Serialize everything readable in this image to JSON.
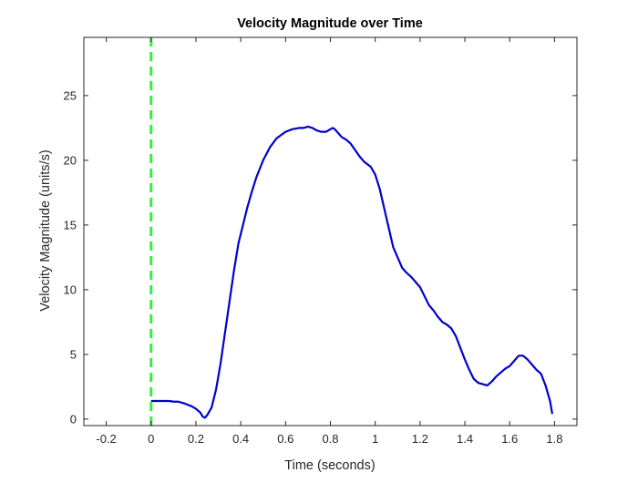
{
  "chart_data": {
    "type": "line",
    "title": "Velocity Magnitude over Time",
    "xlabel": "Time (seconds)",
    "ylabel": "Velocity Magnitude (units/s)",
    "xlim": [
      -0.3,
      1.9
    ],
    "ylim": [
      -0.5,
      29.5
    ],
    "xticks": [
      -0.2,
      0,
      0.2,
      0.4,
      0.6,
      0.8,
      1,
      1.2,
      1.4,
      1.6,
      1.8
    ],
    "xtick_labels": [
      "-0.2",
      "0",
      "0.2",
      "0.4",
      "0.6",
      "0.8",
      "1",
      "1.2",
      "1.4",
      "1.6",
      "1.8"
    ],
    "yticks": [
      0,
      5,
      10,
      15,
      20,
      25
    ],
    "ytick_labels": [
      "0",
      "5",
      "10",
      "15",
      "20",
      "25"
    ],
    "grid": false,
    "series": [
      {
        "color": "#0000cd",
        "style": "solid",
        "x": [
          0,
          0.02,
          0.05,
          0.08,
          0.1,
          0.12,
          0.15,
          0.18,
          0.2,
          0.22,
          0.23,
          0.24,
          0.25,
          0.27,
          0.29,
          0.31,
          0.33,
          0.35,
          0.37,
          0.39,
          0.41,
          0.43,
          0.45,
          0.47,
          0.5,
          0.53,
          0.56,
          0.6,
          0.63,
          0.66,
          0.68,
          0.7,
          0.72,
          0.74,
          0.76,
          0.78,
          0.8,
          0.81,
          0.82,
          0.83,
          0.85,
          0.87,
          0.89,
          0.91,
          0.93,
          0.95,
          0.98,
          1.0,
          1.02,
          1.04,
          1.06,
          1.08,
          1.1,
          1.12,
          1.14,
          1.16,
          1.18,
          1.2,
          1.22,
          1.24,
          1.26,
          1.28,
          1.3,
          1.32,
          1.34,
          1.36,
          1.38,
          1.4,
          1.42,
          1.44,
          1.46,
          1.48,
          1.5,
          1.52,
          1.54,
          1.56,
          1.58,
          1.6,
          1.62,
          1.64,
          1.66,
          1.68,
          1.7,
          1.72,
          1.74,
          1.76,
          1.78,
          1.79
        ],
        "y": [
          1.4,
          1.4,
          1.4,
          1.4,
          1.35,
          1.35,
          1.2,
          1.0,
          0.8,
          0.5,
          0.2,
          0.1,
          0.3,
          0.9,
          2.3,
          4.3,
          6.7,
          9.1,
          11.5,
          13.6,
          15.0,
          16.4,
          17.6,
          18.7,
          20.0,
          21.0,
          21.7,
          22.2,
          22.4,
          22.5,
          22.5,
          22.6,
          22.5,
          22.3,
          22.2,
          22.2,
          22.4,
          22.5,
          22.4,
          22.2,
          21.8,
          21.6,
          21.3,
          20.8,
          20.3,
          19.9,
          19.5,
          18.9,
          17.8,
          16.3,
          14.8,
          13.3,
          12.5,
          11.7,
          11.3,
          11.0,
          10.6,
          10.2,
          9.5,
          8.8,
          8.4,
          7.9,
          7.5,
          7.3,
          7.0,
          6.4,
          5.5,
          4.6,
          3.8,
          3.1,
          2.8,
          2.7,
          2.6,
          2.9,
          3.3,
          3.6,
          3.9,
          4.1,
          4.5,
          4.9,
          4.9,
          4.6,
          4.2,
          3.8,
          3.5,
          2.6,
          1.4,
          0.4
        ]
      },
      {
        "color": "#33ee44",
        "style": "dashed",
        "x": [
          0,
          0
        ],
        "y": [
          -0.5,
          29.5
        ]
      }
    ]
  }
}
